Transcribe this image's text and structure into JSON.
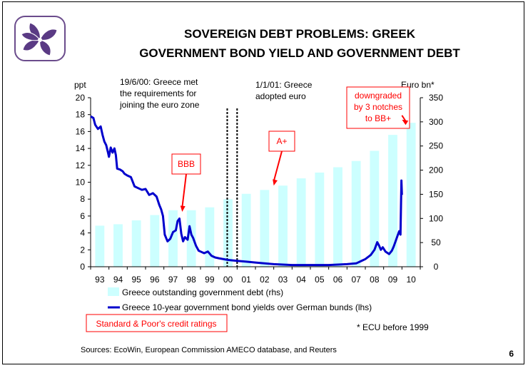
{
  "slide": {
    "title_line1": "SOVEREIGN DEBT PROBLEMS: GREEK",
    "title_line2": "GOVERNMENT BOND YIELD AND GOVERNMENT DEBT",
    "sources": "Sources: EcoWin, European Commission AMECO database, and Reuters",
    "page_number": "6",
    "ecu_note": "* ECU before 1999",
    "sp_box_label": "Standard & Poor's credit ratings",
    "logo_icon": "bauhinia-flower-icon"
  },
  "colors": {
    "bar": "#ccffff",
    "line": "#0000cc",
    "rating": "#ff0000",
    "vline": "#000000"
  },
  "chart_data": {
    "type": "bar-line",
    "yleft_label": "ppt",
    "yright_label": "Euro bn*",
    "yleft_range": [
      0,
      20
    ],
    "yleft_ticks": [
      "0",
      "2",
      "4",
      "6",
      "8",
      "10",
      "12",
      "14",
      "16",
      "18",
      "20"
    ],
    "yright_range": [
      0,
      350
    ],
    "yright_ticks": [
      "0",
      "50",
      "100",
      "150",
      "200",
      "250",
      "300",
      "350"
    ],
    "categories": [
      "93",
      "94",
      "95",
      "96",
      "97",
      "98",
      "99",
      "00",
      "01",
      "02",
      "03",
      "04",
      "05",
      "06",
      "07",
      "08",
      "09",
      "10"
    ],
    "series": [
      {
        "name": "Greece outstanding government debt (rhs)",
        "axis": "right",
        "type": "bar",
        "values": [
          85,
          88,
          96,
          107,
          117,
          117,
          123,
          140,
          151,
          159,
          168,
          183,
          195,
          206,
          219,
          240,
          273,
          298
        ]
      },
      {
        "name": "Greece 10-year government bond yields over German bunds (lhs)",
        "axis": "left",
        "type": "line",
        "points": [
          [
            1993.0,
            17.8
          ],
          [
            1993.15,
            17.6
          ],
          [
            1993.25,
            16.8
          ],
          [
            1993.4,
            16.3
          ],
          [
            1993.55,
            16.6
          ],
          [
            1993.65,
            15.6
          ],
          [
            1993.75,
            14.8
          ],
          [
            1993.85,
            14.4
          ],
          [
            1993.95,
            13.5
          ],
          [
            1994.0,
            13.0
          ],
          [
            1994.1,
            14.1
          ],
          [
            1994.2,
            13.5
          ],
          [
            1994.3,
            14.0
          ],
          [
            1994.38,
            13.2
          ],
          [
            1994.45,
            11.6
          ],
          [
            1994.6,
            11.5
          ],
          [
            1994.75,
            11.3
          ],
          [
            1994.85,
            11.0
          ],
          [
            1995.0,
            10.8
          ],
          [
            1995.2,
            10.6
          ],
          [
            1995.4,
            9.5
          ],
          [
            1995.6,
            9.3
          ],
          [
            1995.8,
            9.1
          ],
          [
            1996.0,
            9.2
          ],
          [
            1996.2,
            8.5
          ],
          [
            1996.4,
            8.7
          ],
          [
            1996.6,
            8.3
          ],
          [
            1996.75,
            7.3
          ],
          [
            1996.85,
            6.8
          ],
          [
            1996.95,
            6.0
          ],
          [
            1997.05,
            3.8
          ],
          [
            1997.2,
            3.0
          ],
          [
            1997.35,
            3.3
          ],
          [
            1997.5,
            4.1
          ],
          [
            1997.65,
            4.3
          ],
          [
            1997.75,
            5.4
          ],
          [
            1997.85,
            5.7
          ],
          [
            1997.95,
            3.9
          ],
          [
            1998.05,
            3.0
          ],
          [
            1998.15,
            3.5
          ],
          [
            1998.3,
            3.2
          ],
          [
            1998.4,
            4.8
          ],
          [
            1998.5,
            3.8
          ],
          [
            1998.6,
            3.4
          ],
          [
            1998.75,
            2.5
          ],
          [
            1998.9,
            1.9
          ],
          [
            1999.0,
            1.8
          ],
          [
            1999.2,
            1.6
          ],
          [
            1999.4,
            1.8
          ],
          [
            1999.6,
            1.3
          ],
          [
            1999.8,
            1.1
          ],
          [
            2000.0,
            1.0
          ],
          [
            2000.5,
            0.8
          ],
          [
            2001.0,
            0.7
          ],
          [
            2001.5,
            0.6
          ],
          [
            2002.0,
            0.5
          ],
          [
            2003.0,
            0.3
          ],
          [
            2004.0,
            0.2
          ],
          [
            2005.0,
            0.2
          ],
          [
            2006.0,
            0.2
          ],
          [
            2007.0,
            0.3
          ],
          [
            2007.5,
            0.4
          ],
          [
            2008.0,
            0.9
          ],
          [
            2008.3,
            1.4
          ],
          [
            2008.5,
            2.0
          ],
          [
            2008.65,
            2.9
          ],
          [
            2008.75,
            2.5
          ],
          [
            2008.85,
            2.0
          ],
          [
            2008.95,
            2.3
          ],
          [
            2009.1,
            1.8
          ],
          [
            2009.3,
            1.5
          ],
          [
            2009.45,
            1.9
          ],
          [
            2009.55,
            2.4
          ],
          [
            2009.65,
            3.0
          ],
          [
            2009.75,
            3.6
          ],
          [
            2009.85,
            4.2
          ],
          [
            2009.92,
            3.8
          ],
          [
            2009.97,
            10.2
          ],
          [
            2010.0,
            8.5
          ]
        ]
      }
    ],
    "events": [
      {
        "label": "19/6/00: Greece met the requirements for joining the euro zone",
        "lines": [
          "19/6/00: Greece met",
          "the requirements for",
          "joining the euro zone"
        ],
        "x": 2000.46
      },
      {
        "label": "1/1/01: Greece adopted euro",
        "lines": [
          "1/1/01: Greece",
          "adopted euro"
        ],
        "x": 2001.0
      }
    ],
    "ratings": [
      {
        "lines": [
          "BBB"
        ],
        "x": 1998.0,
        "y": 6.5
      },
      {
        "lines": [
          "A+"
        ],
        "x": 2003.0,
        "y": 9.6
      },
      {
        "lines": [
          "downgraded",
          "by 3 notches",
          "to BB+"
        ],
        "x": 2010.0,
        "y": 17.4
      }
    ]
  }
}
